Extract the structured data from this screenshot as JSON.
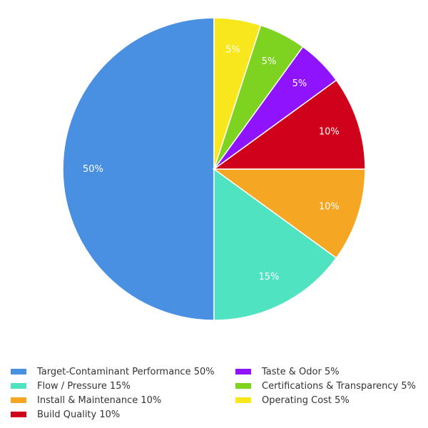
{
  "chart_data": {
    "type": "pie",
    "direction": "counterclockwise from top",
    "legend_position": "bottom",
    "slices": [
      {
        "label": "Target-Contaminant Performance",
        "value": 50,
        "data_label": "50%",
        "legend": "Target-Contaminant Performance 50%",
        "color": "#4a90e2"
      },
      {
        "label": "Flow / Pressure",
        "value": 15,
        "data_label": "15%",
        "legend": "Flow / Pressure 15%",
        "color": "#50e3c2"
      },
      {
        "label": "Install & Maintenance",
        "value": 10,
        "data_label": "10%",
        "legend": "Install & Maintenance 10%",
        "color": "#f5a623"
      },
      {
        "label": "Build Quality",
        "value": 10,
        "data_label": "10%",
        "legend": "Build Quality 10%",
        "color": "#d0021b"
      },
      {
        "label": "Taste & Odor",
        "value": 5,
        "data_label": "5%",
        "legend": "Taste & Odor 5%",
        "color": "#9013fe"
      },
      {
        "label": "Certifications & Transparency",
        "value": 5,
        "data_label": "5%",
        "legend": "Certifications & Transparency 5%",
        "color": "#7ed321"
      },
      {
        "label": "Operating Cost",
        "value": 5,
        "data_label": "5%",
        "legend": "Operating Cost 5%",
        "color": "#f8e71c"
      }
    ]
  }
}
